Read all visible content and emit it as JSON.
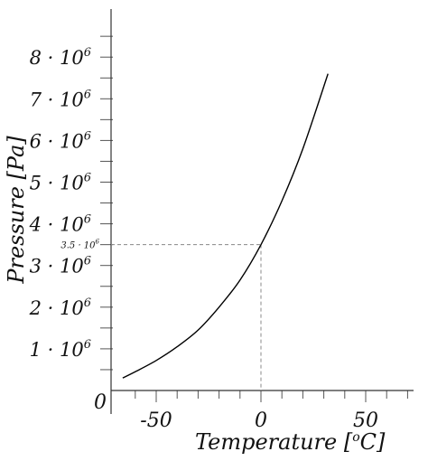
{
  "chart_data": {
    "type": "line",
    "xlabel": "Temperature [",
    "xlabel_unit_sup": "o",
    "xlabel_unit_tail": "C]",
    "ylabel": "Pressure [Pa]",
    "origin_label": "0",
    "xlim": [
      -70,
      70
    ],
    "ylim": [
      0,
      9000000
    ],
    "x_ticks": [
      {
        "value": -50,
        "label": "-50"
      },
      {
        "value": 0,
        "label": "0"
      },
      {
        "value": 50,
        "label": "50"
      }
    ],
    "y_ticks": [
      {
        "value": 1000000,
        "mantissa": "1 · 10",
        "exp": "6"
      },
      {
        "value": 2000000,
        "mantissa": "2 · 10",
        "exp": "6"
      },
      {
        "value": 3000000,
        "mantissa": "3 · 10",
        "exp": "6"
      },
      {
        "value": 4000000,
        "mantissa": "4 · 10",
        "exp": "6"
      },
      {
        "value": 5000000,
        "mantissa": "5 · 10",
        "exp": "6"
      },
      {
        "value": 6000000,
        "mantissa": "6 · 10",
        "exp": "6"
      },
      {
        "value": 7000000,
        "mantissa": "7 · 10",
        "exp": "6"
      },
      {
        "value": 8000000,
        "mantissa": "8 · 10",
        "exp": "6"
      }
    ],
    "x_minor_step": 10,
    "y_minor_step": 500000,
    "annotation": {
      "x": 0,
      "y": 3500000,
      "label": "3.5 · 10",
      "exp": "6"
    },
    "series": [
      {
        "x": [
          -66,
          -60,
          -50,
          -40,
          -30,
          -20,
          -10,
          0,
          10,
          20,
          32
        ],
        "y": [
          300000,
          450000,
          720000,
          1050000,
          1450000,
          2000000,
          2650000,
          3500000,
          4550000,
          5800000,
          7600000
        ]
      }
    ]
  }
}
